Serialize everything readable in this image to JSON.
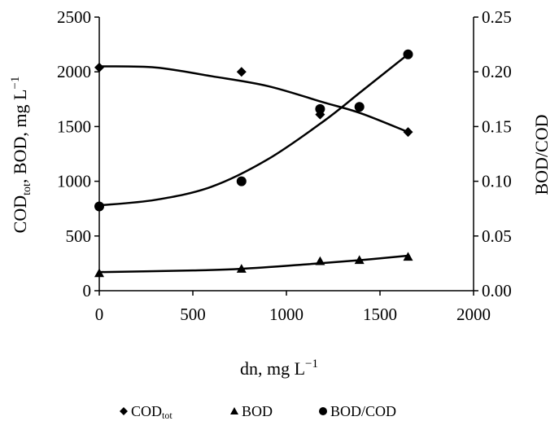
{
  "chart_data": {
    "type": "scatter",
    "title": "",
    "xlabel": "dn, mg L",
    "xlabel_sup": "−1",
    "ylabel_parts": {
      "cod": "COD",
      "tot": "tot",
      "rest": ", BOD, mg L",
      "sup": "−1"
    },
    "y2label": "BOD/COD",
    "xlim": [
      0,
      2000
    ],
    "ylim": [
      0,
      2500
    ],
    "y2lim": [
      0,
      0.25
    ],
    "x_ticks": [
      0,
      500,
      1000,
      1500,
      2000
    ],
    "x_tick_labels": [
      "0",
      "500",
      "1000",
      "1500",
      "2000"
    ],
    "y_ticks": [
      0,
      500,
      1000,
      1500,
      2000,
      2500
    ],
    "y_tick_labels": [
      "0",
      "500",
      "1000",
      "1500",
      "2000",
      "2500"
    ],
    "y2_ticks": [
      0,
      0.05,
      0.1,
      0.15,
      0.2,
      0.25
    ],
    "y2_tick_labels": [
      "0.00",
      "0.05",
      "0.10",
      "0.15",
      "0.20",
      "0.25"
    ],
    "grid": false,
    "legend_position": "bottom",
    "series": [
      {
        "name": "COD",
        "name_sub": "tot",
        "marker": "diamond",
        "axis": "left",
        "points": [
          [
            0,
            2040
          ],
          [
            760,
            2000
          ],
          [
            1180,
            1610
          ],
          [
            1390,
            1680
          ],
          [
            1650,
            1450
          ]
        ],
        "trend": [
          [
            0,
            2050
          ],
          [
            300,
            2040
          ],
          [
            600,
            1960
          ],
          [
            900,
            1870
          ],
          [
            1200,
            1720
          ],
          [
            1400,
            1620
          ],
          [
            1650,
            1450
          ]
        ]
      },
      {
        "name": "BOD",
        "marker": "triangle",
        "axis": "left",
        "points": [
          [
            0,
            160
          ],
          [
            760,
            200
          ],
          [
            1180,
            270
          ],
          [
            1390,
            280
          ],
          [
            1650,
            310
          ]
        ],
        "trend": [
          [
            0,
            170
          ],
          [
            500,
            185
          ],
          [
            760,
            200
          ],
          [
            1100,
            240
          ],
          [
            1400,
            280
          ],
          [
            1650,
            320
          ]
        ]
      },
      {
        "name": "BOD/COD",
        "marker": "circle",
        "axis": "right",
        "points": [
          [
            0,
            0.077
          ],
          [
            760,
            0.1
          ],
          [
            1180,
            0.166
          ],
          [
            1390,
            0.168
          ],
          [
            1650,
            0.216
          ]
        ],
        "trend": [
          [
            0,
            0.078
          ],
          [
            300,
            0.083
          ],
          [
            600,
            0.095
          ],
          [
            900,
            0.12
          ],
          [
            1200,
            0.155
          ],
          [
            1400,
            0.182
          ],
          [
            1650,
            0.216
          ]
        ]
      }
    ]
  }
}
